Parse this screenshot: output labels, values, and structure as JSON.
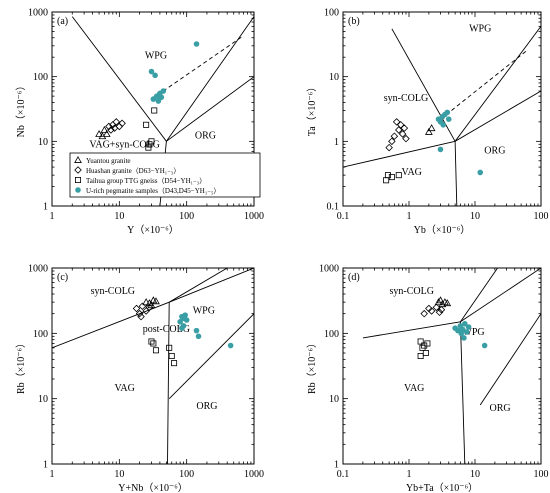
{
  "colors": {
    "axis": "#000000",
    "pegmatite": "#3a9ea5",
    "hollow_marker": "#000000"
  },
  "legend": {
    "entries": [
      {
        "marker": "triangle",
        "label": "Yuantou granite"
      },
      {
        "marker": "diamond",
        "label": "Huashan granite（D63−YH₁₋₃）"
      },
      {
        "marker": "square",
        "label": "Taihua group TTG gneiss（D54−YH₁₋₃）"
      },
      {
        "marker": "circle",
        "label": "U-rich pegmatite samples（D43,D45−YH₁₋₅）"
      }
    ]
  },
  "chart_data": [
    {
      "id": "a",
      "type": "scatter",
      "panel_label": "(a)",
      "xlabel": "Y（×10⁻⁶）",
      "ylabel": "Nb（×10⁻⁶）",
      "xscale": "log",
      "yscale": "log",
      "xlim": [
        1,
        1000
      ],
      "ylim": [
        1,
        1000
      ],
      "xticks": [
        1,
        10,
        100,
        1000
      ],
      "yticks": [
        1,
        10,
        100,
        1000
      ],
      "field_labels": [
        {
          "text": "WPG",
          "x": 35,
          "y": 190
        },
        {
          "text": "VAG+syn-COLG",
          "x": 12,
          "y": 8
        },
        {
          "text": "ORG",
          "x": 190,
          "y": 11
        }
      ],
      "boundaries": [
        {
          "style": "solid",
          "points": [
            [
              2,
              850
            ],
            [
              50,
              10
            ]
          ]
        },
        {
          "style": "solid",
          "points": [
            [
              50,
              10
            ],
            [
              40,
              1
            ]
          ]
        },
        {
          "style": "solid",
          "points": [
            [
              50,
              10
            ],
            [
              1000,
              100
            ]
          ]
        },
        {
          "style": "solid",
          "points": [
            [
              50,
              10
            ],
            [
              1000,
              850
            ]
          ]
        },
        {
          "style": "dashed",
          "points": [
            [
              30,
              45
            ],
            [
              700,
              430
            ]
          ]
        }
      ],
      "series": [
        {
          "marker": "triangle",
          "points": [
            [
              5,
              13
            ],
            [
              6,
              15
            ],
            [
              6.5,
              13
            ],
            [
              5.6,
              12
            ]
          ]
        },
        {
          "marker": "diamond",
          "points": [
            [
              7,
              17
            ],
            [
              8,
              18
            ],
            [
              9,
              20
            ],
            [
              10,
              17
            ],
            [
              11,
              19
            ],
            [
              8.5,
              16
            ],
            [
              7.5,
              15
            ]
          ]
        },
        {
          "marker": "square",
          "points": [
            [
              25,
              18
            ],
            [
              28,
              9
            ],
            [
              30,
              10
            ],
            [
              27,
              8
            ],
            [
              33,
              30
            ]
          ]
        },
        {
          "marker": "circle",
          "points": [
            [
              30,
              120
            ],
            [
              34,
              105
            ],
            [
              32,
              45
            ],
            [
              36,
              50
            ],
            [
              40,
              55
            ],
            [
              42,
              48
            ],
            [
              45,
              60
            ],
            [
              38,
              42
            ],
            [
              140,
              320
            ]
          ]
        }
      ]
    },
    {
      "id": "b",
      "type": "scatter",
      "panel_label": "(b)",
      "xlabel": "Yb（×10⁻⁶）",
      "ylabel": "Ta（×10⁻⁶）",
      "xscale": "log",
      "yscale": "log",
      "xlim": [
        0.1,
        100
      ],
      "ylim": [
        0.1,
        100
      ],
      "xticks": [
        0.1,
        1,
        10,
        100
      ],
      "yticks": [
        0.1,
        1,
        10,
        100
      ],
      "field_labels": [
        {
          "text": "WPG",
          "x": 12,
          "y": 50
        },
        {
          "text": "syn-COLG",
          "x": 0.9,
          "y": 4.2
        },
        {
          "text": "VAG",
          "x": 1.1,
          "y": 0.3
        },
        {
          "text": "ORG",
          "x": 20,
          "y": 0.65
        }
      ],
      "boundaries": [
        {
          "style": "solid",
          "points": [
            [
              0.55,
              55
            ],
            [
              5,
              1
            ]
          ]
        },
        {
          "style": "solid",
          "points": [
            [
              0.1,
              0.4
            ],
            [
              5,
              1
            ]
          ]
        },
        {
          "style": "solid",
          "points": [
            [
              5,
              1
            ],
            [
              5.3,
              0.1
            ]
          ]
        },
        {
          "style": "solid",
          "points": [
            [
              5,
              1
            ],
            [
              100,
              6
            ]
          ]
        },
        {
          "style": "solid",
          "points": [
            [
              5,
              1
            ],
            [
              100,
              60
            ]
          ]
        },
        {
          "style": "dashed",
          "points": [
            [
              3,
              2.2
            ],
            [
              60,
              25
            ]
          ]
        }
      ],
      "series": [
        {
          "marker": "triangle",
          "points": [
            [
              2,
              1.4
            ],
            [
              2.2,
              1.6
            ]
          ]
        },
        {
          "marker": "diamond",
          "points": [
            [
              0.5,
              0.8
            ],
            [
              0.55,
              1
            ],
            [
              0.6,
              1.2
            ],
            [
              0.7,
              1.5
            ],
            [
              0.8,
              1.3
            ],
            [
              0.65,
              2
            ],
            [
              0.75,
              1.8
            ],
            [
              0.9,
              1.1
            ],
            [
              0.85,
              1.6
            ]
          ]
        },
        {
          "marker": "square",
          "points": [
            [
              0.45,
              0.25
            ],
            [
              0.48,
              0.3
            ],
            [
              0.55,
              0.28
            ],
            [
              0.7,
              0.3
            ]
          ]
        },
        {
          "marker": "circle",
          "points": [
            [
              2.8,
              2.2
            ],
            [
              3,
              2
            ],
            [
              3.2,
              2.4
            ],
            [
              3.5,
              2.6
            ],
            [
              3.8,
              2.8
            ],
            [
              3.3,
              1.8
            ],
            [
              4,
              2.2
            ],
            [
              3,
              0.75
            ],
            [
              12,
              0.33
            ]
          ]
        }
      ]
    },
    {
      "id": "c",
      "type": "scatter",
      "panel_label": "(c)",
      "xlabel": "Y+Nb（×10⁻⁶）",
      "ylabel": "Rb（×10⁻⁶）",
      "xscale": "log",
      "yscale": "log",
      "xlim": [
        1,
        1000
      ],
      "ylim": [
        1,
        1000
      ],
      "xticks": [
        1,
        10,
        100,
        1000
      ],
      "yticks": [
        1,
        10,
        100,
        1000
      ],
      "field_labels": [
        {
          "text": "syn-COLG",
          "x": 8,
          "y": 400
        },
        {
          "text": "WPG",
          "x": 180,
          "y": 200
        },
        {
          "text": "post-COLG",
          "x": 50,
          "y": 105
        },
        {
          "text": "VAG",
          "x": 12,
          "y": 13
        },
        {
          "text": "ORG",
          "x": 200,
          "y": 7
        }
      ],
      "boundaries": [
        {
          "style": "solid",
          "points": [
            [
              1,
              60
            ],
            [
              55,
              300
            ]
          ]
        },
        {
          "style": "solid",
          "points": [
            [
              55,
              300
            ],
            [
              52,
              1
            ]
          ]
        },
        {
          "style": "solid",
          "points": [
            [
              55,
              300
            ],
            [
              1000,
              1000
            ]
          ]
        },
        {
          "style": "solid",
          "points": [
            [
              55,
              300
            ],
            [
              400,
              1000
            ]
          ]
        },
        {
          "style": "solid",
          "points": [
            [
              55,
              10
            ],
            [
              1000,
              200
            ]
          ]
        }
      ],
      "series": [
        {
          "marker": "triangle",
          "points": [
            [
              25,
              300
            ],
            [
              28,
              290
            ],
            [
              30,
              270
            ],
            [
              32,
              320
            ],
            [
              35,
              310
            ]
          ]
        },
        {
          "marker": "diamond",
          "points": [
            [
              18,
              240
            ],
            [
              20,
              200
            ],
            [
              22,
              260
            ],
            [
              25,
              220
            ],
            [
              28,
              250
            ],
            [
              21,
              180
            ]
          ]
        },
        {
          "marker": "square",
          "points": [
            [
              30,
              75
            ],
            [
              32,
              70
            ],
            [
              35,
              55
            ],
            [
              55,
              60
            ],
            [
              60,
              45
            ],
            [
              65,
              35
            ]
          ]
        },
        {
          "marker": "circle",
          "points": [
            [
              80,
              150
            ],
            [
              85,
              180
            ],
            [
              90,
              170
            ],
            [
              95,
              190
            ],
            [
              100,
              160
            ],
            [
              90,
              130
            ],
            [
              85,
              120
            ],
            [
              140,
              110
            ],
            [
              150,
              90
            ],
            [
              450,
              65
            ]
          ]
        }
      ]
    },
    {
      "id": "d",
      "type": "scatter",
      "panel_label": "(d)",
      "xlabel": "Yb+Ta（×10⁻⁶）",
      "ylabel": "Rb（×10⁻⁶）",
      "xscale": "log",
      "yscale": "log",
      "xlim": [
        0.1,
        100
      ],
      "ylim": [
        1,
        1000
      ],
      "xticks": [
        0.1,
        1,
        10,
        100
      ],
      "yticks": [
        1,
        10,
        100,
        1000
      ],
      "field_labels": [
        {
          "text": "syn-COLG",
          "x": 1.1,
          "y": 400
        },
        {
          "text": "WPG",
          "x": 9.5,
          "y": 95
        },
        {
          "text": "VAG",
          "x": 1.2,
          "y": 13
        },
        {
          "text": "ORG",
          "x": 24,
          "y": 6.5
        }
      ],
      "boundaries": [
        {
          "style": "solid",
          "points": [
            [
              0.2,
              85
            ],
            [
              6,
              150
            ]
          ]
        },
        {
          "style": "solid",
          "points": [
            [
              6,
              150
            ],
            [
              7,
              1
            ]
          ]
        },
        {
          "style": "solid",
          "points": [
            [
              6,
              150
            ],
            [
              22,
              1000
            ]
          ]
        },
        {
          "style": "solid",
          "points": [
            [
              6,
              150
            ],
            [
              100,
              1000
            ]
          ]
        },
        {
          "style": "solid",
          "points": [
            [
              12,
              8
            ],
            [
              100,
              200
            ]
          ]
        }
      ],
      "series": [
        {
          "marker": "triangle",
          "points": [
            [
              2.8,
              300
            ],
            [
              3,
              320
            ],
            [
              3.2,
              280
            ],
            [
              3.5,
              300
            ],
            [
              3.8,
              290
            ]
          ]
        },
        {
          "marker": "diamond",
          "points": [
            [
              1.7,
              200
            ],
            [
              2,
              240
            ],
            [
              2.2,
              220
            ],
            [
              2.6,
              250
            ],
            [
              2.9,
              210
            ],
            [
              3.1,
              230
            ]
          ]
        },
        {
          "marker": "square",
          "points": [
            [
              1.5,
              75
            ],
            [
              1.6,
              60
            ],
            [
              1.7,
              65
            ],
            [
              1.8,
              50
            ],
            [
              1.9,
              70
            ],
            [
              1.5,
              45
            ]
          ]
        },
        {
          "marker": "circle",
          "points": [
            [
              5,
              120
            ],
            [
              5.5,
              110
            ],
            [
              6,
              130
            ],
            [
              6.5,
              115
            ],
            [
              7,
              140
            ],
            [
              7.5,
              105
            ],
            [
              8,
              125
            ],
            [
              6.2,
              100
            ],
            [
              6.8,
              85
            ],
            [
              14,
              65
            ]
          ]
        }
      ]
    }
  ]
}
